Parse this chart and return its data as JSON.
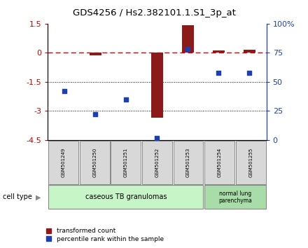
{
  "title": "GDS4256 / Hs2.382101.1.S1_3p_at",
  "samples": [
    "GSM501249",
    "GSM501250",
    "GSM501251",
    "GSM501252",
    "GSM501253",
    "GSM501254",
    "GSM501255"
  ],
  "transformed_count": [
    0.0,
    -0.15,
    0.0,
    -3.35,
    1.4,
    0.1,
    0.15
  ],
  "percentile_rank": [
    42,
    22,
    35,
    2,
    78,
    58,
    58
  ],
  "red_color": "#8B1A1A",
  "blue_color": "#1E40AF",
  "dashed_line_color": "#CC0000",
  "ylim_left": [
    -4.5,
    1.5
  ],
  "ylim_right": [
    0,
    100
  ],
  "yticks_left": [
    1.5,
    0,
    -1.5,
    -3,
    -4.5
  ],
  "ytick_labels_left": [
    "1.5",
    "0",
    "-1.5",
    "-3",
    "-4.5"
  ],
  "yticks_right": [
    0,
    25,
    50,
    75,
    100
  ],
  "ytick_labels_right": [
    "0",
    "25",
    "50",
    "75",
    "100%"
  ],
  "group1_label": "caseous TB granulomas",
  "group2_label": "normal lung\nparenchyma",
  "group1_color": "#C8F5C8",
  "group2_color": "#A8DCA8",
  "cell_type_label": "cell type",
  "legend_red": "transformed count",
  "legend_blue": "percentile rank within the sample",
  "background_color": "#FFFFFF"
}
